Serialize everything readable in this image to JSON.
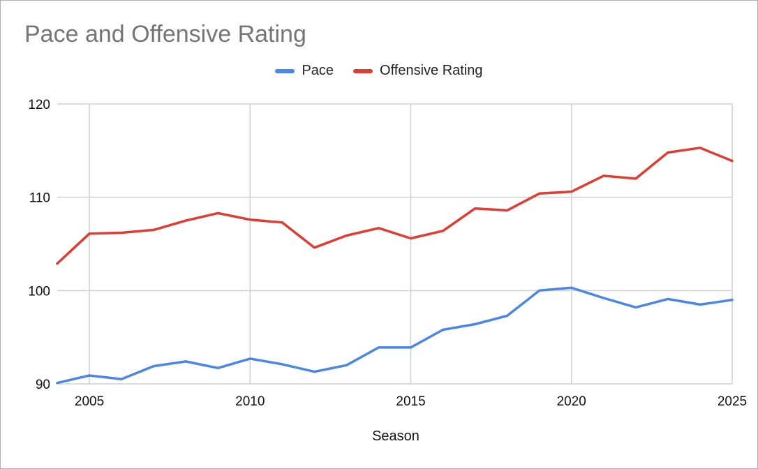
{
  "chart_data": {
    "type": "line",
    "title": "Pace and Offensive Rating",
    "xlabel": "Season",
    "ylabel": "",
    "x": [
      2004,
      2005,
      2006,
      2007,
      2008,
      2009,
      2010,
      2011,
      2012,
      2013,
      2014,
      2015,
      2016,
      2017,
      2018,
      2019,
      2020,
      2021,
      2022,
      2023,
      2024,
      2025
    ],
    "xlim": [
      2004,
      2025
    ],
    "ylim": [
      90,
      120
    ],
    "x_ticks": [
      "2005",
      "2010",
      "2015",
      "2020",
      "2025"
    ],
    "y_ticks": [
      "90",
      "100",
      "110",
      "120"
    ],
    "grid": true,
    "legend_position": "top-center",
    "series": [
      {
        "name": "Pace",
        "color": "#4a86e8",
        "values": [
          90.1,
          90.9,
          90.5,
          91.9,
          92.4,
          91.7,
          92.7,
          92.1,
          91.3,
          92.0,
          93.9,
          93.9,
          95.8,
          96.4,
          97.3,
          100.0,
          100.3,
          99.2,
          98.2,
          99.1,
          98.5,
          99.0
        ]
      },
      {
        "name": "Offensive Rating",
        "color": "#e03c31",
        "values": [
          102.9,
          106.1,
          106.2,
          106.5,
          107.5,
          108.3,
          107.6,
          107.3,
          104.6,
          105.9,
          106.7,
          105.6,
          106.4,
          108.8,
          108.6,
          110.4,
          110.6,
          112.3,
          112.0,
          114.8,
          115.3,
          113.9
        ]
      }
    ]
  }
}
